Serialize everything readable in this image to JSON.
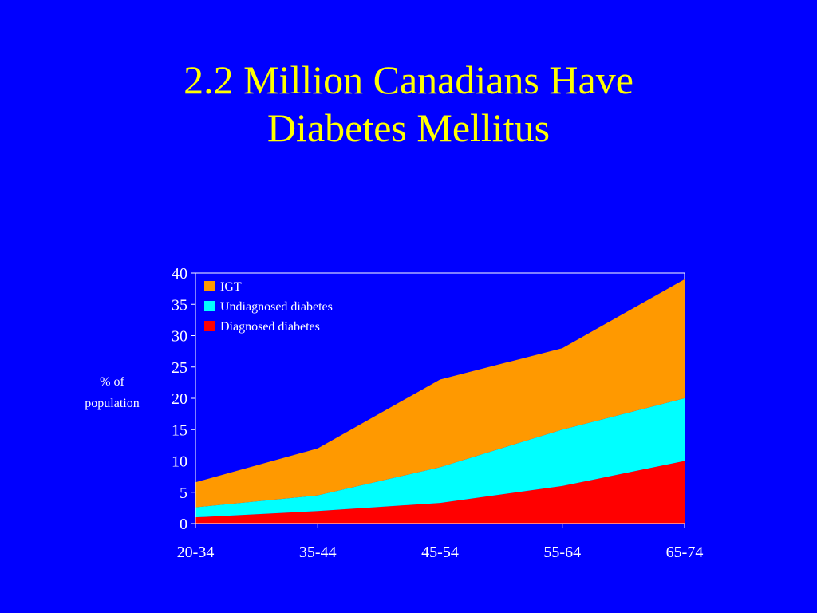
{
  "title": {
    "line1": "2.2 Million Canadians Have",
    "line2": "Diabetes Mellitus"
  },
  "colors": {
    "background": "#0000ff",
    "title": "#ffff00",
    "axis_text": "#ffffff"
  },
  "chart_data": {
    "type": "area",
    "stacked": true,
    "categories": [
      "20-34",
      "35-44",
      "45-54",
      "55-64",
      "65-74"
    ],
    "ylabel_lines": [
      "% of",
      "population"
    ],
    "xlabel": "",
    "ylim": [
      0,
      40
    ],
    "yticks": [
      0,
      5,
      10,
      15,
      20,
      25,
      30,
      35,
      40
    ],
    "grid": false,
    "legend_position": "top-left",
    "series": [
      {
        "name": "Diagnosed diabetes",
        "color": "#ff0000",
        "values": [
          1,
          2,
          3.3,
          6,
          10
        ]
      },
      {
        "name": "Undiagnosed diabetes",
        "color": "#00ffff",
        "values": [
          1.6,
          2.5,
          5.7,
          9,
          10
        ]
      },
      {
        "name": "IGT",
        "color": "#ff9900",
        "values": [
          4,
          7.5,
          14,
          13,
          19
        ]
      }
    ],
    "legend_order": [
      "IGT",
      "Undiagnosed diabetes",
      "Diagnosed diabetes"
    ]
  }
}
